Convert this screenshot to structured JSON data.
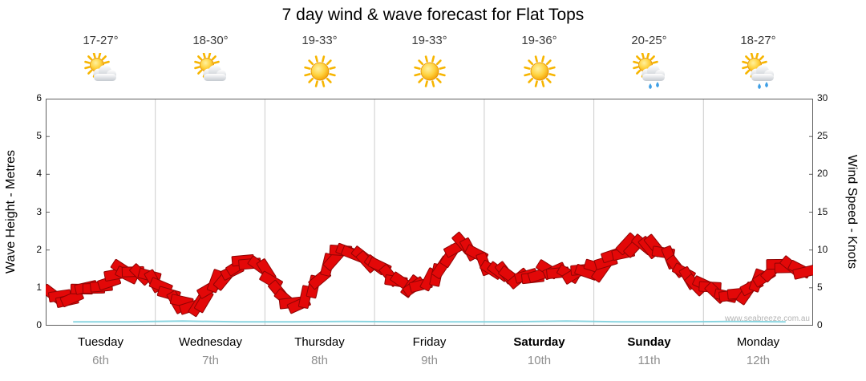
{
  "title": "7 day wind & wave forecast for Flat Tops",
  "watermark": "www.seabreeze.com.au",
  "axes": {
    "left_label": "Wave Height - Metres",
    "right_label": "Wind Speed - Knots",
    "left_ticks": [
      0,
      1,
      2,
      3,
      4,
      5,
      6
    ],
    "right_ticks": [
      0,
      5,
      10,
      15,
      20,
      25,
      30
    ]
  },
  "days": [
    {
      "name": "Tuesday",
      "date": "6th",
      "temp": "17-27°",
      "icon": "partly-cloudy",
      "weekend": false
    },
    {
      "name": "Wednesday",
      "date": "7th",
      "temp": "18-30°",
      "icon": "partly-cloudy",
      "weekend": false
    },
    {
      "name": "Thursday",
      "date": "8th",
      "temp": "19-33°",
      "icon": "sunny",
      "weekend": false
    },
    {
      "name": "Friday",
      "date": "9th",
      "temp": "19-33°",
      "icon": "sunny",
      "weekend": false
    },
    {
      "name": "Saturday",
      "date": "10th",
      "temp": "19-36°",
      "icon": "sunny",
      "weekend": true
    },
    {
      "name": "Sunday",
      "date": "11th",
      "temp": "20-25°",
      "icon": "showers",
      "weekend": true
    },
    {
      "name": "Monday",
      "date": "12th",
      "temp": "18-27°",
      "icon": "showers",
      "weekend": false
    }
  ],
  "chart_data": {
    "type": "line",
    "title": "7 day wind & wave forecast for Flat Tops",
    "x_categories": [
      "Tuesday 6th",
      "Wednesday 7th",
      "Thursday 8th",
      "Friday 9th",
      "Saturday 10th",
      "Sunday 11th",
      "Monday 12th"
    ],
    "samples_per_day": 8,
    "y_left": {
      "label": "Wave Height - Metres",
      "range": [
        0,
        6
      ],
      "ticks": [
        0,
        1,
        2,
        3,
        4,
        5,
        6
      ]
    },
    "y_right": {
      "label": "Wind Speed - Knots",
      "range": [
        0,
        30
      ],
      "ticks": [
        0,
        5,
        10,
        15,
        20,
        25,
        30
      ]
    },
    "grid": {
      "vertical_day_lines": true,
      "color": "#cccccc",
      "border_color": "#606060"
    },
    "series": [
      {
        "name": "Wind Speed",
        "axis": "right",
        "unit": "knots",
        "style": "wind-flag-band",
        "color": "#e30808",
        "outline": "#8f0404",
        "values": [
          4,
          3.5,
          4.5,
          5,
          6,
          7.3,
          6.8,
          6.3,
          5,
          3.5,
          2.5,
          3.5,
          5.5,
          7.5,
          8.5,
          7.8,
          6,
          3.5,
          2.8,
          5,
          8,
          10,
          9.5,
          8.8,
          7.5,
          6,
          4.8,
          5.5,
          7,
          9,
          11,
          9.3,
          7.5,
          6.8,
          6,
          6.5,
          7.5,
          7.3,
          6.8,
          7.3,
          7.5,
          9,
          10.5,
          11,
          10.3,
          9,
          7,
          5.5,
          5,
          4.3,
          4,
          5,
          6.5,
          7.8,
          7.5,
          6.8
        ]
      },
      {
        "name": "Wave Height",
        "axis": "left",
        "unit": "metres",
        "style": "line",
        "color": "#7ed0dd",
        "values": [
          0.1,
          0.1,
          0.12,
          0.1,
          0.1,
          0.11,
          0.1,
          0.1,
          0.1,
          0.12,
          0.1,
          0.1,
          0.11,
          0.1
        ]
      }
    ]
  }
}
